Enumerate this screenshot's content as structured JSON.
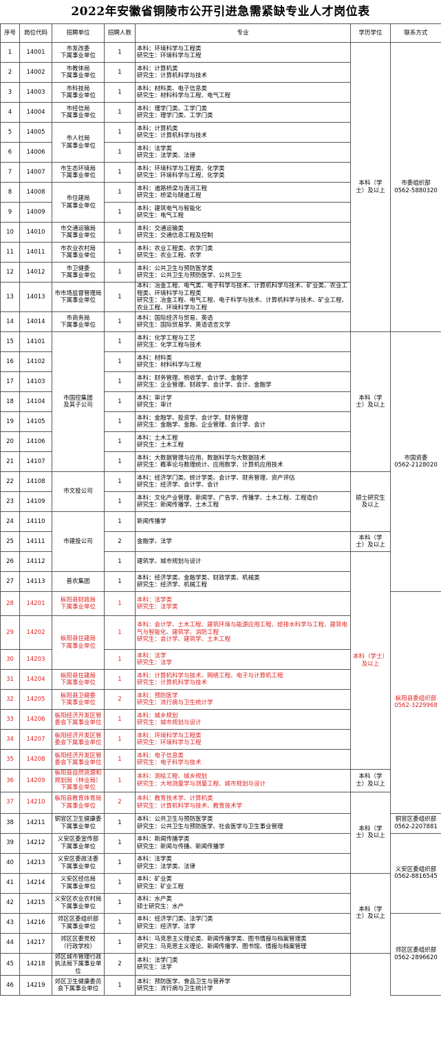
{
  "title": "2022年安徽省铜陵市公开引进急需紧缺专业人才岗位表",
  "headers": [
    "序号",
    "岗位代码",
    "招聘单位",
    "招聘人数",
    "专业",
    "学历学位",
    "联系方式"
  ],
  "rows": [
    {
      "no": "1",
      "code": "14001",
      "count": "1",
      "major": [
        "本科：环境科学与工程类",
        "研究生：环境科学与工程"
      ]
    },
    {
      "no": "2",
      "code": "14002",
      "count": "1",
      "major": [
        "本科：计算机类",
        "研究生：计算机科学与技术"
      ]
    },
    {
      "no": "3",
      "code": "14003",
      "count": "1",
      "major": [
        "本科：材料类、电子信息类",
        "研究生：材料科学与工程、电气工程"
      ]
    },
    {
      "no": "4",
      "code": "14004",
      "count": "1",
      "major": [
        "本科：理学门类、工学门类",
        "研究生：理学门类、工学门类"
      ]
    },
    {
      "no": "5",
      "code": "14005",
      "count": "1",
      "major": [
        "本科：计算机类",
        "研究生：计算机科学与技术"
      ]
    },
    {
      "no": "6",
      "code": "14006",
      "count": "1",
      "major": [
        "本科：法学类",
        "研究生：法学类、法律"
      ]
    },
    {
      "no": "7",
      "code": "14007",
      "count": "1",
      "major": [
        "本科：环境科学与工程类、化学类",
        "研究生：环境科学与工程、化学类"
      ]
    },
    {
      "no": "8",
      "code": "14008",
      "count": "1",
      "major": [
        "本科：道路桥梁与渡河工程",
        "研究生：桥梁与隧道工程"
      ]
    },
    {
      "no": "9",
      "code": "14009",
      "count": "1",
      "major": [
        "本科：建筑电气与智能化",
        "研究生：电气工程"
      ]
    },
    {
      "no": "10",
      "code": "14010",
      "count": "1",
      "major": [
        "本科：交通运输类",
        "研究生：交通信息工程及控制"
      ]
    },
    {
      "no": "11",
      "code": "14011",
      "count": "1",
      "major": [
        "本科：农业工程类、农学门类",
        "研究生：农业工程、农学"
      ]
    },
    {
      "no": "12",
      "code": "14012",
      "count": "1",
      "major": [
        "本科：公共卫生与预防医学类",
        "研究生：公共卫生与预防医学、公共卫生"
      ]
    },
    {
      "no": "13",
      "code": "14013",
      "count": "1",
      "major": [
        "本科：冶金工程、电气类、电子科学与技术、计算机科学与技术、矿业类、农业工程类、环境科学与工程类",
        "研究生：冶金工程、电气工程、电子科学与技术、计算机科学与技术、矿业工程、农业工程、环境科学与工程"
      ]
    },
    {
      "no": "14",
      "code": "14014",
      "count": "1",
      "major": [
        "本科：国际经济与贸易、英语",
        "研究生：国际贸易学、英语语言文学"
      ]
    },
    {
      "no": "15",
      "code": "14101",
      "count": "1",
      "major": [
        "本科：化学工程与工艺",
        "研究生：化学工程与技术"
      ]
    },
    {
      "no": "16",
      "code": "14102",
      "count": "1",
      "major": [
        "本科：材料类",
        "研究生：材料科学与工程"
      ]
    },
    {
      "no": "17",
      "code": "14103",
      "count": "1",
      "major": [
        "本科：财务管理、税收学、会计学、金融学",
        "研究生：企业管理、财政学、会计学、会计、金融学"
      ]
    },
    {
      "no": "18",
      "code": "14104",
      "count": "1",
      "major": [
        "本科：审计学",
        "研究生：审计"
      ]
    },
    {
      "no": "19",
      "code": "14105",
      "count": "1",
      "major": [
        "本科：金融学、投资学、会计学、财务管理",
        "研究生：金融学、金融、企业管理、会计学、会计"
      ]
    },
    {
      "no": "20",
      "code": "14106",
      "count": "1",
      "major": [
        "本科：土木工程",
        "研究生：土木工程"
      ]
    },
    {
      "no": "21",
      "code": "14107",
      "count": "1",
      "major": [
        "本科：大数据管理与应用、数据科学与大数据技术",
        "研究生：概率论与数理统计、应用数学、计算机应用技术"
      ]
    },
    {
      "no": "22",
      "code": "14108",
      "count": "1",
      "major": [
        "本科：经济学门类、统计学类、会计学、财务管理、资产评估",
        "研究生：经济学、会计学、会计"
      ]
    },
    {
      "no": "23",
      "code": "14109",
      "count": "1",
      "major": [
        "本科：文化产业管理、新闻学、广告学、传播学、土木工程、工程造价",
        "研究生：新闻传播学、土木工程"
      ]
    },
    {
      "no": "24",
      "code": "14110",
      "count": "1",
      "major": [
        "新闻传播学"
      ]
    },
    {
      "no": "25",
      "code": "14111",
      "count": "2",
      "major": [
        "金融学、法学"
      ]
    },
    {
      "no": "26",
      "code": "14112",
      "count": "1",
      "major": [
        "建筑学、城市规划与设计"
      ]
    },
    {
      "no": "27",
      "code": "14113",
      "count": "1",
      "major": [
        "本科：经济学类、金融学类、财政学类、机械类",
        "研究生：经济学、机械工程"
      ]
    },
    {
      "no": "28",
      "code": "14201",
      "count": "1",
      "major": [
        "本科：法学类",
        "研究生：法学类"
      ]
    },
    {
      "no": "29",
      "code": "14202",
      "count": "1",
      "major": [
        "本科：会计学、土木工程、建筑环境与能源应用工程、给排水科学与工程、建筑电气与智能化、建筑学、消防工程",
        "研究生：会计学、建筑学、土木工程"
      ]
    },
    {
      "no": "30",
      "code": "14203",
      "count": "1",
      "major": [
        "本科：法学",
        "研究生：法学"
      ]
    },
    {
      "no": "31",
      "code": "14204",
      "count": "1",
      "major": [
        "本科：计算机科学与技术、网络工程、电子与计算机工程",
        "研究生：计算机科学与技术"
      ]
    },
    {
      "no": "32",
      "code": "14205",
      "count": "2",
      "major": [
        "本科：预防医学",
        "研究生：流行病与卫生统计学"
      ]
    },
    {
      "no": "33",
      "code": "14206",
      "count": "1",
      "major": [
        "本科：城乡规划",
        "研究生：城市规划与设计"
      ]
    },
    {
      "no": "34",
      "code": "14207",
      "count": "1",
      "major": [
        "本科：环境科学与工程类",
        "研究生：环境科学与工程"
      ]
    },
    {
      "no": "35",
      "code": "14208",
      "count": "1",
      "major": [
        "本科：电子信息类",
        "研究生：电子科学与技术"
      ]
    },
    {
      "no": "36",
      "code": "14209",
      "count": "1",
      "major": [
        "本科：测绘工程、城乡规划",
        "研究生：大地测量学与测量工程、城市规划与设计"
      ]
    },
    {
      "no": "37",
      "code": "14210",
      "count": "2",
      "major": [
        "本科：教育技术学、计算机类",
        "研究生：计算机科学与技术、教育技术学"
      ]
    },
    {
      "no": "38",
      "code": "14211",
      "count": "1",
      "major": [
        "本科：公共卫生与预防医学类",
        "研究生：公共卫生与预防医学、社会医学与卫生事业管理"
      ]
    },
    {
      "no": "39",
      "code": "14212",
      "count": "1",
      "major": [
        "本科：新闻传播学类",
        "研究生：新闻与传播、新闻传播学"
      ]
    },
    {
      "no": "40",
      "code": "14213",
      "count": "1",
      "major": [
        "本科：法学类",
        "研究生：法学类、法律"
      ]
    },
    {
      "no": "41",
      "code": "14214",
      "count": "1",
      "major": [
        "本科：矿业类",
        "研究生：矿业工程"
      ]
    },
    {
      "no": "42",
      "code": "14215",
      "count": "1",
      "major": [
        "本科：水产类",
        "硕士研究生：水产"
      ]
    },
    {
      "no": "43",
      "code": "14216",
      "count": "1",
      "major": [
        "本科：经济学门类、法学门类",
        "研究生：经济学、法学"
      ]
    },
    {
      "no": "44",
      "code": "14217",
      "count": "1",
      "major": [
        "本科：马克思主义理论类、新闻传播学类、图书情报与档案管理类",
        "研究生：马克思主义理论、新闻传播学、图书馆、情报与档案管理"
      ]
    },
    {
      "no": "45",
      "code": "14218",
      "count": "2",
      "major": [
        "本科：法学门类",
        "研究生：法学"
      ]
    },
    {
      "no": "46",
      "code": "14219",
      "count": "1",
      "major": [
        "本科：预防医学、食品卫生与营养学",
        "研究生：流行病与卫生统计学"
      ]
    }
  ],
  "units": [
    {
      "text": "市发改委\n下属事业单位"
    },
    {
      "text": "市教体局\n下属事业单位"
    },
    {
      "text": "市科技局\n下属事业单位"
    },
    {
      "text": "市经信局\n下属事业单位"
    },
    {
      "text": "市人社局\n下属事业单位"
    },
    {
      "text": "市生态环境局\n下属事业单位"
    },
    {
      "text": "市住建局\n下属事业单位"
    },
    {
      "text": "市交通运输局\n下属事业单位"
    },
    {
      "text": "市农业农村局\n下属事业单位"
    },
    {
      "text": "市卫健委\n下属事业单位"
    },
    {
      "text": "市市场监督管理局\n下属事业单位"
    },
    {
      "text": "市商务局\n下属事业单位"
    },
    {
      "text": "市国控集团\n及其子公司"
    },
    {
      "text": "市文投公司"
    },
    {
      "text": "市建投公司"
    },
    {
      "text": "普农集团"
    },
    {
      "text": "枞阳县财政局\n下属事业单位"
    },
    {
      "text": "枞阳县住建局\n下属事业单位"
    },
    {
      "text": "枞阳县住建局\n下属事业单位"
    },
    {
      "text": "枞阳县卫健委\n下属事业单位"
    },
    {
      "text": "枞阳经济开发区管\n委会下属事业单位"
    },
    {
      "text": "枞阳经济开发区管\n委会下属事业单位"
    },
    {
      "text": "枞阳经济开发区管\n委会下属事业单位"
    },
    {
      "text": "枞阳县自然资源和\n规划局（林业局）\n下属事业单位"
    },
    {
      "text": "枞阳县教育体育局\n下属事业单位"
    },
    {
      "text": "铜官区卫生健康委\n下属事业单位"
    },
    {
      "text": "义安区委宣传部\n下属事业单位"
    },
    {
      "text": "义安区委政法委\n下属事业单位"
    },
    {
      "text": "义安区经信局\n下属事业单位"
    },
    {
      "text": "义安区农业农村局\n下属事业单位"
    },
    {
      "text": "郊区区委组织部\n下属事业单位"
    },
    {
      "text": "郊区区委党校\n（行政学校）"
    },
    {
      "text": "郊区城市管理行政\n执法局下属事业单\n位"
    },
    {
      "text": "郊区卫生健康委员\n会下属事业单位"
    }
  ],
  "degrees": [
    {
      "text": "本科（学\n士）及以上"
    },
    {
      "text": "本科（学\n士）及以上"
    },
    {
      "text": "硕士研究生\n及以上"
    },
    {
      "text": "本科（学\n士）及以上"
    },
    {
      "text": "本科（学士）\n及以上"
    },
    {
      "text": "本科（学\n士）及以上"
    },
    {
      "text": "本科（学\n士）及以上"
    },
    {
      "text": "本科（学\n士）及以上"
    }
  ],
  "contacts": [
    {
      "text": "市委组织部\n0562-5880320"
    },
    {
      "text": "市国资委\n0562-2128020"
    },
    {
      "text": "枞阳县委组织部\n0562-3229968"
    },
    {
      "text": "铜官区委组织部\n0562-2207881"
    },
    {
      "text": "义安区委组织部\n0562-8816545"
    },
    {
      "text": "郊区区委组织部\n0562-2896620"
    }
  ],
  "colors": {
    "border": "#555555",
    "highlight": "#e02020"
  }
}
